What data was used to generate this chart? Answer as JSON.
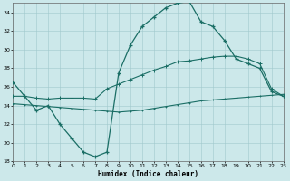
{
  "xlabel": "Humidex (Indice chaleur)",
  "bg_color": "#cce8ea",
  "grid_color": "#a0c8cc",
  "line_color": "#1a6e65",
  "xlim": [
    0,
    23
  ],
  "ylim": [
    18,
    35
  ],
  "yticks": [
    18,
    20,
    22,
    24,
    26,
    28,
    30,
    32,
    34
  ],
  "xticks": [
    0,
    1,
    2,
    3,
    4,
    5,
    6,
    7,
    8,
    9,
    10,
    11,
    12,
    13,
    14,
    15,
    16,
    17,
    18,
    19,
    20,
    21,
    22,
    23
  ],
  "line1_x": [
    0,
    1,
    2,
    3,
    4,
    5,
    6,
    7,
    8,
    9,
    10,
    11,
    12,
    13,
    14,
    15,
    16,
    17,
    18,
    19,
    20,
    21,
    22,
    23
  ],
  "line1_y": [
    26.5,
    25.0,
    23.5,
    24.0,
    22.0,
    20.5,
    19.0,
    18.5,
    19.0,
    27.5,
    30.5,
    32.5,
    33.5,
    34.5,
    35.0,
    35.2,
    33.0,
    32.5,
    31.0,
    29.0,
    28.5,
    28.0,
    25.5,
    25.0
  ],
  "line2_x": [
    0,
    1,
    2,
    3,
    4,
    5,
    6,
    7,
    8,
    9,
    10,
    11,
    12,
    13,
    14,
    15,
    16,
    17,
    18,
    19,
    20,
    21,
    22,
    23
  ],
  "line2_y": [
    25.0,
    25.0,
    24.8,
    24.7,
    24.8,
    24.8,
    24.8,
    24.7,
    25.8,
    26.3,
    26.8,
    27.3,
    27.8,
    28.2,
    28.7,
    28.8,
    29.0,
    29.2,
    29.3,
    29.3,
    29.0,
    28.5,
    25.8,
    25.0
  ],
  "line3_x": [
    0,
    1,
    2,
    3,
    4,
    5,
    6,
    7,
    8,
    9,
    10,
    11,
    12,
    13,
    14,
    15,
    16,
    17,
    18,
    19,
    20,
    21,
    22,
    23
  ],
  "line3_y": [
    24.2,
    24.1,
    24.0,
    23.9,
    23.8,
    23.7,
    23.6,
    23.5,
    23.4,
    23.3,
    23.4,
    23.5,
    23.7,
    23.9,
    24.1,
    24.3,
    24.5,
    24.6,
    24.7,
    24.8,
    24.9,
    25.0,
    25.1,
    25.2
  ]
}
